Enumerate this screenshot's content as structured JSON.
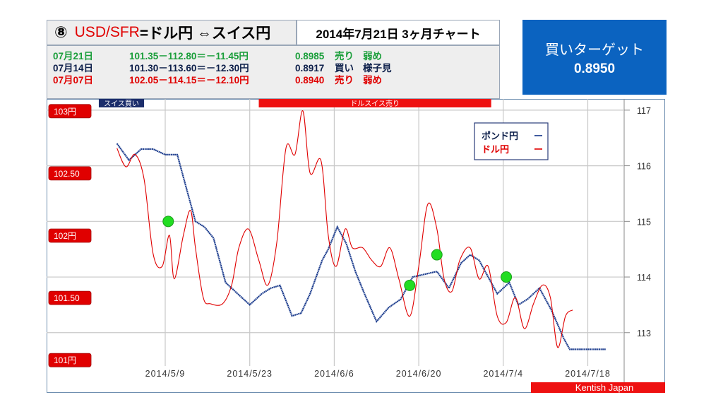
{
  "header": {
    "number": "⑧",
    "pair": "USD/SFR",
    "title_rest": "=ドル円 ⇔スイス円",
    "date_title": "2014年7月21日 3ヶ月チャート"
  },
  "info_rows": [
    {
      "date": "07月21日",
      "calc": "101.35－112.80＝－11.45円",
      "rate": "0.8985",
      "action": "売り",
      "note": "弱め",
      "color": "#1a9e3a"
    },
    {
      "date": "07月14日",
      "calc": "101.30－113.60＝－12.30円",
      "rate": "0.8917",
      "action": "買い",
      "note": "様子見",
      "color": "#0d1f4a"
    },
    {
      "date": "07月07日",
      "calc": "102.05－114.15＝－12.10円",
      "rate": "0.8940",
      "action": "売り",
      "note": "弱め",
      "color": "#e00000"
    }
  ],
  "target": {
    "label": "買いターゲット",
    "value": "0.8950"
  },
  "colors": {
    "pound_line": "#1f3f8f",
    "dollar_line": "#e00000",
    "marker": "#22dd22",
    "target_bg": "#0b63c0"
  },
  "chart_data": {
    "type": "line",
    "x_ticks": [
      "2014/5/9",
      "2014/5/23",
      "2014/6/6",
      "2014/6/20",
      "2014/7/4",
      "2014/7/18"
    ],
    "left_axis_labels": [
      "103円",
      "102.50",
      "102円",
      "101.50",
      "101円"
    ],
    "left_axis_values": [
      103,
      102.5,
      102,
      101.5,
      101
    ],
    "right_axis_labels": [
      "117",
      "116",
      "115",
      "114",
      "113"
    ],
    "right_axis_values": [
      117,
      116,
      115,
      114,
      113
    ],
    "ylim_left": [
      100.95,
      103.05
    ],
    "ylim_right": [
      112.4,
      117.1
    ],
    "top_bands": [
      {
        "label": "スイス買い",
        "style": "navy",
        "from_day": -11,
        "to_day": -3.5
      },
      {
        "label": "ドルスイス売り",
        "style": "red",
        "from_day": 15.5,
        "to_day": 54
      }
    ],
    "legend": [
      {
        "label": "ポンド円",
        "color": "#1f3f8f",
        "mark": "ー"
      },
      {
        "label": "ドル円",
        "color": "#e00000",
        "mark": "ー"
      }
    ],
    "series": [
      {
        "name": "ポンド円",
        "axis": "right",
        "color": "#1f3f8f",
        "x": [
          -8,
          -6,
          -4,
          -2,
          0,
          2,
          3.5,
          5,
          6.5,
          8,
          10,
          12,
          14,
          16,
          17.5,
          19,
          21,
          22.5,
          24,
          26,
          27,
          28.5,
          30,
          31.5,
          33,
          35,
          37,
          39,
          41,
          43,
          45,
          47,
          49,
          50.5,
          52,
          53.5,
          55,
          57,
          58.5,
          60,
          62,
          64,
          66,
          67,
          68,
          69.5,
          71,
          73
        ],
        "y": [
          116.4,
          116.1,
          116.3,
          116.3,
          116.2,
          116.2,
          115.6,
          115.0,
          114.9,
          114.7,
          113.9,
          113.7,
          113.5,
          113.7,
          113.8,
          113.85,
          113.3,
          113.35,
          113.7,
          114.3,
          114.5,
          114.9,
          114.6,
          114.1,
          113.7,
          113.2,
          113.45,
          113.6,
          114.0,
          114.05,
          114.1,
          113.8,
          114.25,
          114.4,
          114.3,
          114.0,
          113.7,
          113.9,
          113.5,
          113.6,
          113.8,
          113.4,
          112.9,
          112.7,
          112.7,
          112.7,
          112.7,
          112.7
        ]
      },
      {
        "name": "ドル円",
        "axis": "left",
        "color": "#e00000",
        "x": [
          -8,
          -6.5,
          -5,
          -3.5,
          -2,
          -0.5,
          0.7,
          1.5,
          3,
          4.2,
          5,
          6.3,
          7.5,
          9.5,
          11,
          12.2,
          13.8,
          15.5,
          17,
          18.5,
          20,
          21.5,
          22.8,
          24,
          25.8,
          27,
          28.3,
          29.8,
          31,
          32.7,
          34.2,
          35.7,
          37.2,
          38.7,
          40.5,
          42,
          43.5,
          45,
          46.2,
          47.5,
          48.8,
          50.5,
          52,
          53.5,
          55,
          56.5,
          58,
          59.5,
          61,
          62.5,
          63.8,
          65,
          66.3,
          67.5
        ],
        "y": [
          102.7,
          102.55,
          102.65,
          102.45,
          101.85,
          101.75,
          102.0,
          101.65,
          102.0,
          102.2,
          101.9,
          101.5,
          101.45,
          101.45,
          101.6,
          101.9,
          102.05,
          101.8,
          101.6,
          101.95,
          102.7,
          102.65,
          103.0,
          102.5,
          102.6,
          102.0,
          101.75,
          102.05,
          101.9,
          101.9,
          101.8,
          101.75,
          101.9,
          101.65,
          101.35,
          101.75,
          102.25,
          102.05,
          101.65,
          101.55,
          101.8,
          101.9,
          101.65,
          101.75,
          101.35,
          101.3,
          101.5,
          101.25,
          101.45,
          101.6,
          101.5,
          101.1,
          101.35,
          101.4
        ]
      }
    ],
    "markers": [
      {
        "x": 0.5,
        "y": 115.0,
        "axis": "right"
      },
      {
        "x": 40.5,
        "y": 113.85,
        "axis": "right"
      },
      {
        "x": 45,
        "y": 114.4,
        "axis": "right"
      },
      {
        "x": 56.5,
        "y": 114.0,
        "axis": "right"
      }
    ],
    "footer_label": "Kentish Japan"
  }
}
